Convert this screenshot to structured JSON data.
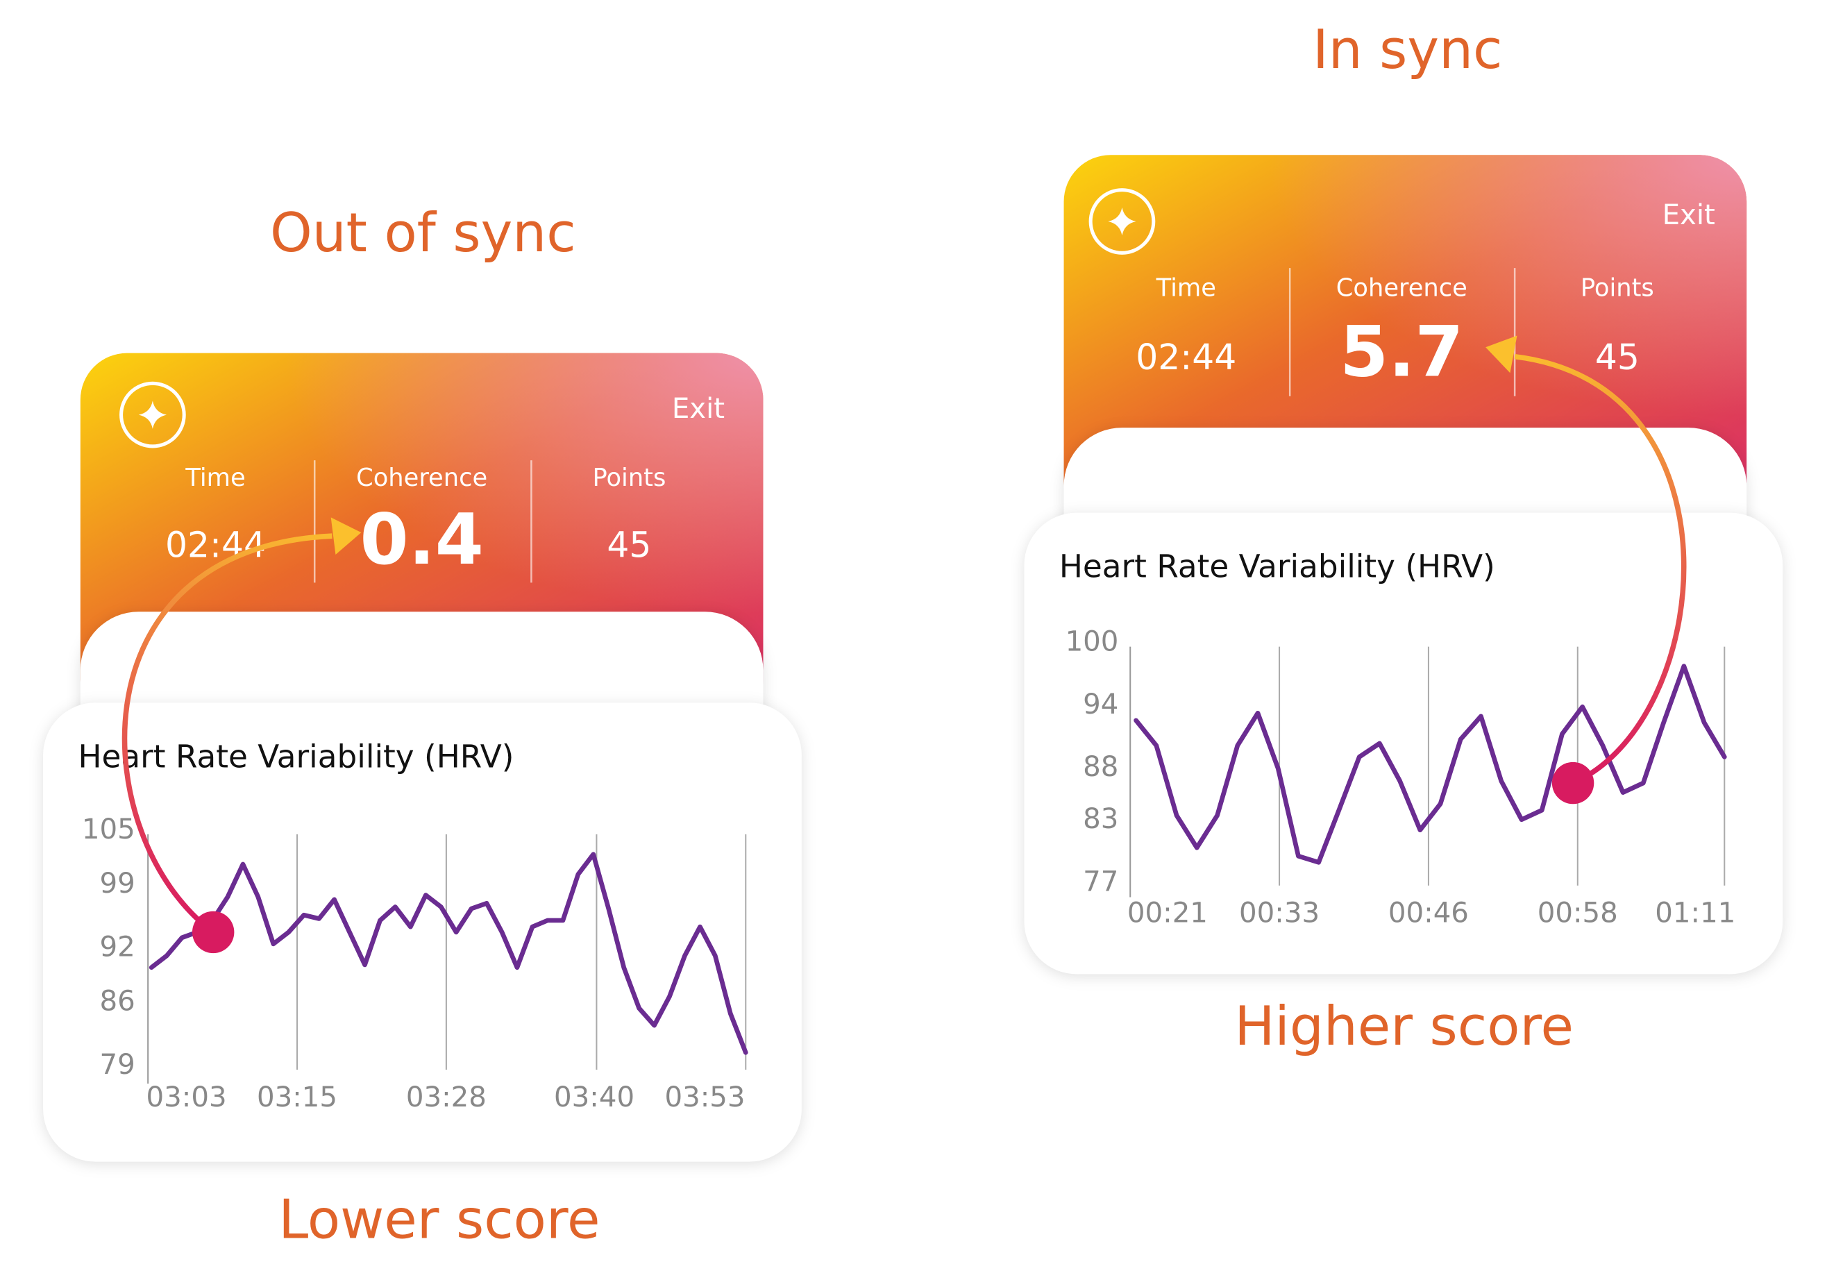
{
  "panels": [
    {
      "caption_top": "Out of sync",
      "caption_bottom": "Lower score",
      "header": {
        "exit": "Exit",
        "stats": [
          {
            "label": "Time",
            "value": "02:44"
          },
          {
            "label": "Coherence",
            "value": 0.4
          },
          {
            "label": "Points",
            "value": 45
          }
        ]
      },
      "chart_data": {
        "type": "line",
        "title": "Heart Rate Variability (HRV)",
        "x_labels": [
          "03:03",
          "03:15",
          "03:28",
          "03:40",
          "03:53"
        ],
        "ylim": [
          79,
          105
        ],
        "yticks": [
          79,
          86,
          92,
          99,
          105
        ],
        "series": [
          {
            "color": "#6a2c91",
            "values": [
              89.9,
              91.2,
              93.2,
              93.8,
              95.1,
              97.7,
              101.3,
              97.7,
              92.5,
              93.8,
              95.7,
              95.3,
              97.4,
              93.8,
              90.2,
              95.1,
              96.6,
              94.4,
              97.9,
              96.6,
              93.8,
              96.4,
              97.0,
              93.8,
              89.9,
              94.4,
              95.1,
              95.1,
              100.2,
              102.4,
              96.4,
              89.9,
              85.4,
              83.5,
              86.7,
              91.2,
              94.4,
              91.2,
              84.8,
              80.5
            ]
          }
        ]
      }
    },
    {
      "caption_top": "In sync",
      "caption_bottom": "Higher score",
      "header": {
        "exit": "Exit",
        "stats": [
          {
            "label": "Time",
            "value": "02:44"
          },
          {
            "label": "Coherence",
            "value": 5.7
          },
          {
            "label": "Points",
            "value": 45
          }
        ]
      },
      "chart_data": {
        "type": "line",
        "title": "Heart Rate Variability (HRV)",
        "x_labels": [
          "00:21",
          "00:33",
          "00:46",
          "00:58",
          "01:11"
        ],
        "ylim": [
          77,
          100
        ],
        "yticks": [
          77,
          83,
          88,
          94,
          100
        ],
        "series": [
          {
            "color": "#6a2c91",
            "values": [
              92.6,
              90.2,
              83.5,
              80.4,
              83.5,
              90.2,
              93.3,
              88.0,
              79.6,
              79.0,
              84.0,
              89.1,
              90.4,
              86.8,
              82.1,
              84.6,
              90.8,
              93.0,
              86.8,
              83.1,
              84.0,
              91.3,
              93.9,
              90.2,
              85.7,
              86.6,
              92.4,
              97.8,
              92.4,
              89.1
            ]
          }
        ]
      }
    }
  ]
}
